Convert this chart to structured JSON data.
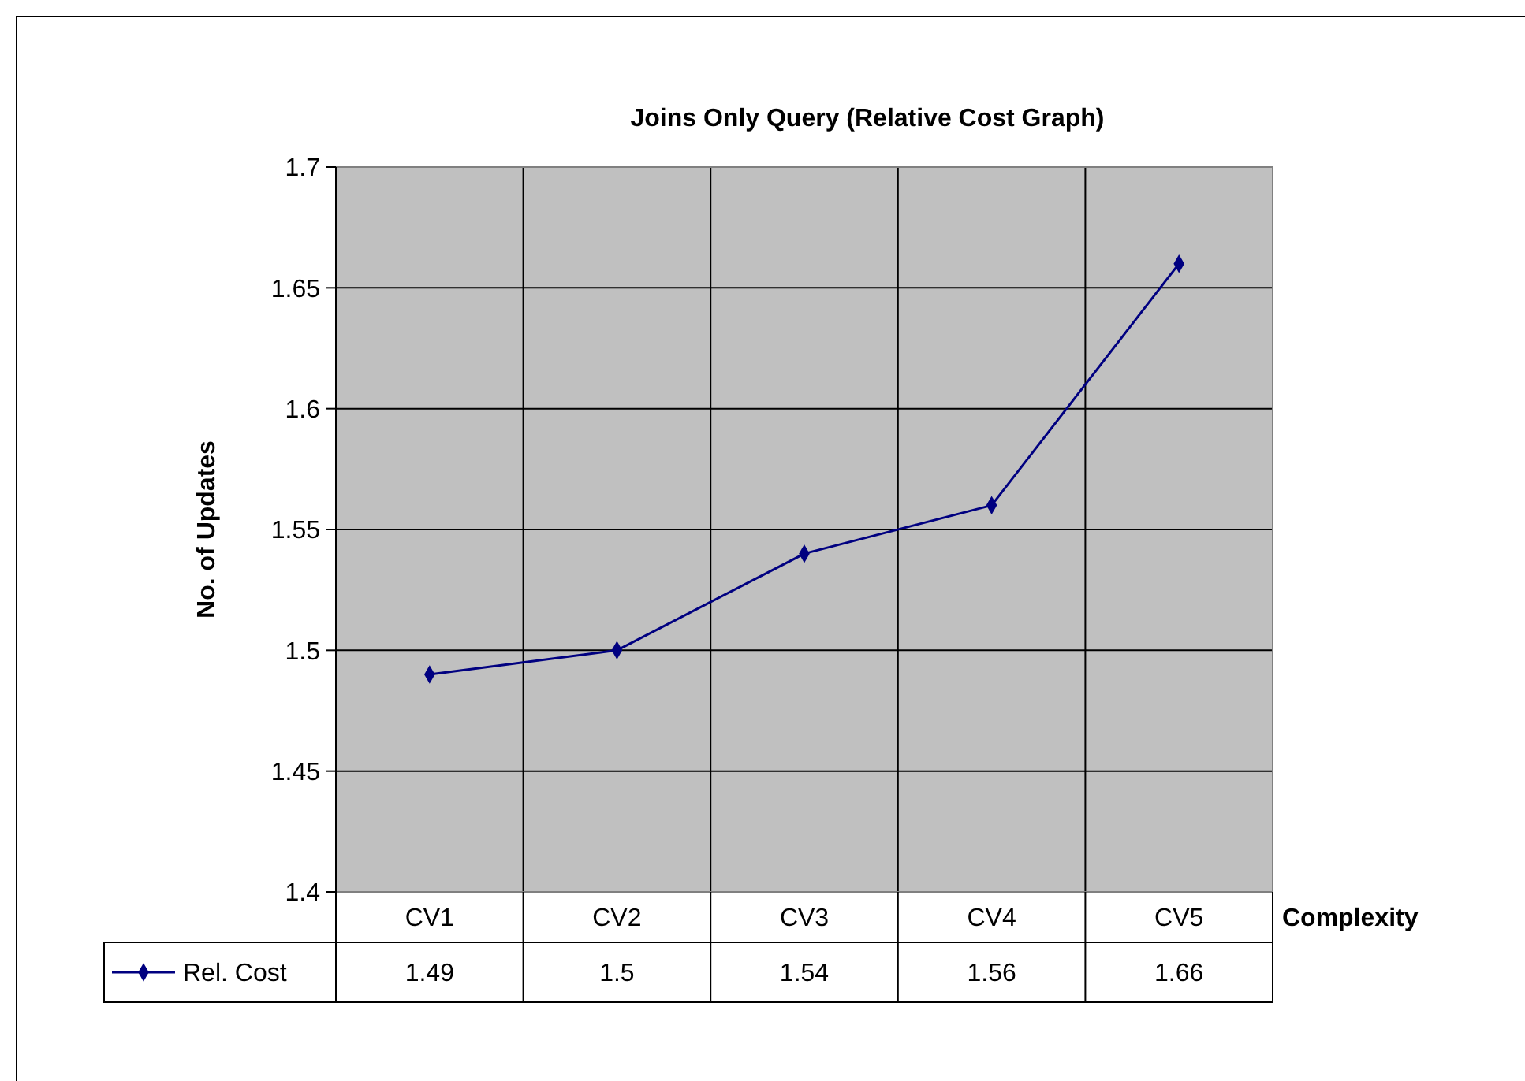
{
  "chart_data": {
    "type": "line",
    "title": "Joins Only Query (Relative Cost Graph)",
    "xlabel": "Complexity",
    "ylabel": "No. of Updates",
    "categories": [
      "CV1",
      "CV2",
      "CV3",
      "CV4",
      "CV5"
    ],
    "series": [
      {
        "name": "Rel. Cost",
        "color": "#000080",
        "values": [
          1.49,
          1.5,
          1.54,
          1.56,
          1.66
        ]
      }
    ],
    "ylim": [
      1.4,
      1.7
    ],
    "yticks": [
      1.4,
      1.45,
      1.5,
      1.55,
      1.6,
      1.65,
      1.7
    ],
    "grid": true,
    "legend": "bottom",
    "marker": "diamond",
    "line_style": "solid",
    "data_labels": true
  }
}
